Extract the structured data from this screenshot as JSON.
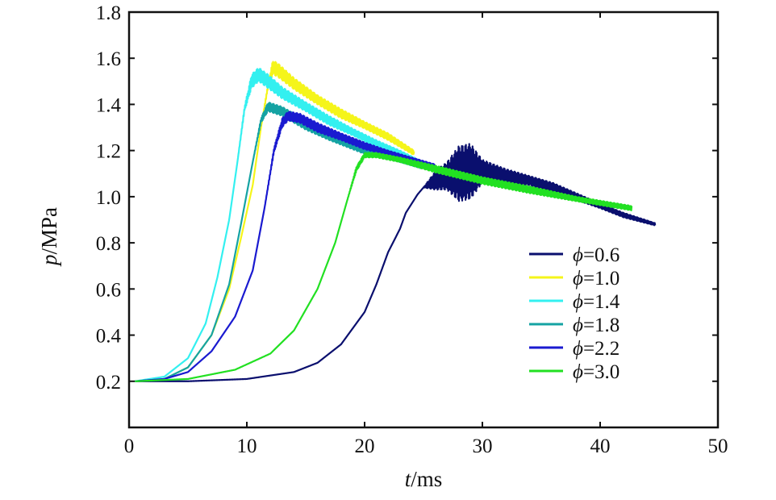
{
  "chart_data": {
    "type": "line",
    "xlabel_var": "t",
    "xlabel_unit": "/ms",
    "ylabel_var": "p",
    "ylabel_unit": "/MPa",
    "xlim": [
      0,
      50
    ],
    "ylim": [
      0,
      1.8
    ],
    "xticks": [
      "0",
      "10",
      "20",
      "30",
      "40",
      "50"
    ],
    "yticks": [
      "0.2",
      "0.4",
      "0.6",
      "0.8",
      "1.0",
      "1.2",
      "1.4",
      "1.6",
      "1.8"
    ],
    "grid": false,
    "legend_position": "right",
    "series": [
      {
        "name": "ϕ=0.6",
        "symbol": "ϕ",
        "value_label": "=0.6",
        "color": "#0a0f6e",
        "x": [
          0.5,
          5,
          10,
          14,
          16,
          18,
          20,
          21,
          22,
          23,
          23.5,
          24,
          24.5,
          25,
          26,
          27,
          28,
          29,
          30,
          32,
          34,
          36,
          38,
          40,
          42,
          44.7
        ],
        "y": [
          0.2,
          0.2,
          0.21,
          0.24,
          0.28,
          0.36,
          0.5,
          0.62,
          0.76,
          0.86,
          0.93,
          0.97,
          1.01,
          1.04,
          1.07,
          1.09,
          1.1,
          1.11,
          1.11,
          1.09,
          1.07,
          1.04,
          1.0,
          0.96,
          0.92,
          0.88
        ],
        "noise": [
          0,
          0,
          0,
          0,
          0,
          0,
          0,
          0,
          0,
          0,
          0,
          0,
          0,
          0,
          0.04,
          0.06,
          0.12,
          0.12,
          0.05,
          0.03,
          0.02,
          0.02,
          0.015,
          0.01,
          0.01,
          0.005
        ]
      },
      {
        "name": "ϕ=1.0",
        "symbol": "ϕ",
        "value_label": "=1.0",
        "color": "#f5f51a",
        "x": [
          0.5,
          3,
          5,
          7,
          8.5,
          9.5,
          10.5,
          11.2,
          11.8,
          12.2,
          12.6,
          14,
          16,
          18,
          20,
          22,
          24.2
        ],
        "y": [
          0.2,
          0.21,
          0.26,
          0.4,
          0.6,
          0.82,
          1.05,
          1.3,
          1.48,
          1.56,
          1.55,
          1.49,
          1.42,
          1.36,
          1.31,
          1.26,
          1.19
        ],
        "noise": [
          0,
          0,
          0,
          0,
          0,
          0,
          0,
          0,
          0.01,
          0.03,
          0.03,
          0.025,
          0.02,
          0.02,
          0.015,
          0.015,
          0.01
        ]
      },
      {
        "name": "ϕ=1.4",
        "symbol": "ϕ",
        "value_label": "=1.4",
        "color": "#33f0f0",
        "x": [
          0.5,
          3,
          5,
          6.5,
          7.5,
          8.5,
          9.2,
          9.8,
          10.4,
          11,
          11.8,
          13,
          15,
          17,
          19,
          21,
          23,
          25
        ],
        "y": [
          0.2,
          0.22,
          0.3,
          0.45,
          0.65,
          0.9,
          1.15,
          1.38,
          1.5,
          1.53,
          1.5,
          1.45,
          1.39,
          1.33,
          1.28,
          1.23,
          1.19,
          1.14
        ],
        "noise": [
          0,
          0,
          0,
          0,
          0,
          0,
          0,
          0.01,
          0.03,
          0.03,
          0.03,
          0.025,
          0.02,
          0.02,
          0.015,
          0.015,
          0.01,
          0.01
        ]
      },
      {
        "name": "ϕ=1.8",
        "symbol": "ϕ",
        "value_label": "=1.8",
        "color": "#15a3a3",
        "x": [
          0.5,
          3,
          5,
          7,
          8.5,
          9.5,
          10.5,
          11.2,
          11.8,
          13,
          15,
          17,
          19,
          20,
          21,
          23,
          25
        ],
        "y": [
          0.2,
          0.21,
          0.26,
          0.4,
          0.62,
          0.88,
          1.15,
          1.33,
          1.39,
          1.37,
          1.31,
          1.26,
          1.22,
          1.2,
          1.19,
          1.16,
          1.13
        ],
        "noise": [
          0,
          0,
          0,
          0,
          0,
          0,
          0,
          0.01,
          0.02,
          0.02,
          0.02,
          0.015,
          0.015,
          0.015,
          0.01,
          0.01,
          0.01
        ]
      },
      {
        "name": "ϕ=2.2",
        "symbol": "ϕ",
        "value_label": "=2.2",
        "color": "#1a1ad0",
        "x": [
          0.5,
          3,
          5,
          7,
          9,
          10.5,
          11.5,
          12.3,
          13,
          13.5,
          14.5,
          16,
          18,
          20,
          22,
          24,
          26
        ],
        "y": [
          0.2,
          0.21,
          0.24,
          0.33,
          0.48,
          0.68,
          0.95,
          1.2,
          1.32,
          1.35,
          1.34,
          1.3,
          1.26,
          1.22,
          1.19,
          1.16,
          1.13
        ],
        "noise": [
          0,
          0,
          0,
          0,
          0,
          0,
          0,
          0.01,
          0.02,
          0.02,
          0.02,
          0.02,
          0.015,
          0.015,
          0.01,
          0.01,
          0.01
        ]
      },
      {
        "name": "ϕ=3.0",
        "symbol": "ϕ",
        "value_label": "=3.0",
        "color": "#22e022",
        "x": [
          0.5,
          5,
          9,
          12,
          14,
          16,
          17.5,
          18.5,
          19.3,
          20,
          21,
          23,
          26,
          30,
          34,
          38,
          42.7
        ],
        "y": [
          0.2,
          0.21,
          0.25,
          0.32,
          0.42,
          0.6,
          0.8,
          0.98,
          1.12,
          1.18,
          1.18,
          1.16,
          1.12,
          1.07,
          1.03,
          0.99,
          0.95
        ],
        "noise": [
          0,
          0,
          0,
          0,
          0,
          0,
          0,
          0,
          0.01,
          0.01,
          0.01,
          0.01,
          0.015,
          0.015,
          0.015,
          0.01,
          0.01
        ]
      }
    ]
  }
}
